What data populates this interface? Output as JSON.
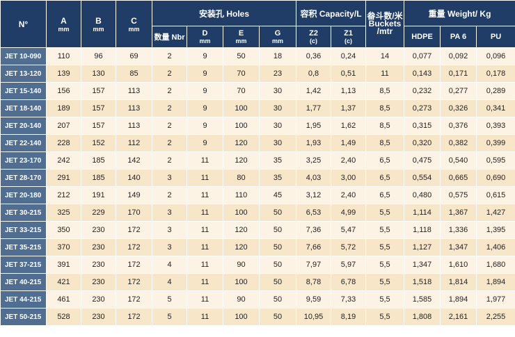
{
  "headers": {
    "no": "N°",
    "a": "A",
    "b": "B",
    "c": "C",
    "mm": "mm",
    "holes": "安装孔 Holes",
    "capacity": "容积 Capacity/L",
    "buckets": "畚斗数/米 Buckets /mtr",
    "weight": "重量 Weight/ Kg",
    "nbr": "数量 Nbr",
    "d": "D",
    "e": "E",
    "g": "G",
    "z2": "Z2",
    "z1": "Z1",
    "c_note": "(c)",
    "hdpe": "HDPE",
    "pa6": "PA 6",
    "pu": "PU"
  },
  "rows": [
    {
      "model": "JET 10-090",
      "a": "110",
      "b": "96",
      "c": "69",
      "nbr": "2",
      "d": "9",
      "e": "50",
      "g": "18",
      "z2": "0,36",
      "z1": "0,24",
      "buckets": "14",
      "hdpe": "0,077",
      "pa6": "0,092",
      "pu": "0,096"
    },
    {
      "model": "JET 13-120",
      "a": "139",
      "b": "130",
      "c": "85",
      "nbr": "2",
      "d": "9",
      "e": "70",
      "g": "23",
      "z2": "0,8",
      "z1": "0,51",
      "buckets": "11",
      "hdpe": "0,143",
      "pa6": "0,171",
      "pu": "0,178"
    },
    {
      "model": "JET 15-140",
      "a": "156",
      "b": "157",
      "c": "113",
      "nbr": "2",
      "d": "9",
      "e": "70",
      "g": "30",
      "z2": "1,42",
      "z1": "1,13",
      "buckets": "8,5",
      "hdpe": "0,232",
      "pa6": "0,277",
      "pu": "0,289"
    },
    {
      "model": "JET 18-140",
      "a": "189",
      "b": "157",
      "c": "113",
      "nbr": "2",
      "d": "9",
      "e": "100",
      "g": "30",
      "z2": "1,77",
      "z1": "1,37",
      "buckets": "8,5",
      "hdpe": "0,273",
      "pa6": "0,326",
      "pu": "0,341"
    },
    {
      "model": "JET 20-140",
      "a": "207",
      "b": "157",
      "c": "113",
      "nbr": "2",
      "d": "9",
      "e": "100",
      "g": "30",
      "z2": "1,95",
      "z1": "1,62",
      "buckets": "8,5",
      "hdpe": "0,315",
      "pa6": "0,376",
      "pu": "0,393"
    },
    {
      "model": "JET 22-140",
      "a": "228",
      "b": "152",
      "c": "112",
      "nbr": "2",
      "d": "9",
      "e": "120",
      "g": "30",
      "z2": "1,93",
      "z1": "1,49",
      "buckets": "8,5",
      "hdpe": "0,320",
      "pa6": "0,382",
      "pu": "0,399"
    },
    {
      "model": "JET 23-170",
      "a": "242",
      "b": "185",
      "c": "142",
      "nbr": "2",
      "d": "11",
      "e": "120",
      "g": "35",
      "z2": "3,25",
      "z1": "2,40",
      "buckets": "6,5",
      "hdpe": "0,475",
      "pa6": "0,540",
      "pu": "0,595"
    },
    {
      "model": "JET 28-170",
      "a": "291",
      "b": "185",
      "c": "140",
      "nbr": "3",
      "d": "11",
      "e": "80",
      "g": "35",
      "z2": "4,03",
      "z1": "3,00",
      "buckets": "6,5",
      "hdpe": "0,554",
      "pa6": "0,665",
      "pu": "0,690"
    },
    {
      "model": "JET 20-180",
      "a": "212",
      "b": "191",
      "c": "149",
      "nbr": "2",
      "d": "11",
      "e": "110",
      "g": "45",
      "z2": "3,12",
      "z1": "2,40",
      "buckets": "6,5",
      "hdpe": "0,480",
      "pa6": "0,575",
      "pu": "0,615"
    },
    {
      "model": "JET 30-215",
      "a": "325",
      "b": "229",
      "c": "170",
      "nbr": "3",
      "d": "11",
      "e": "100",
      "g": "50",
      "z2": "6,53",
      "z1": "4,99",
      "buckets": "5,5",
      "hdpe": "1,114",
      "pa6": "1,367",
      "pu": "1,427"
    },
    {
      "model": "JET 33-215",
      "a": "350",
      "b": "230",
      "c": "172",
      "nbr": "3",
      "d": "11",
      "e": "120",
      "g": "50",
      "z2": "7,36",
      "z1": "5,47",
      "buckets": "5,5",
      "hdpe": "1,118",
      "pa6": "1,336",
      "pu": "1,395"
    },
    {
      "model": "JET 35-215",
      "a": "370",
      "b": "230",
      "c": "172",
      "nbr": "3",
      "d": "11",
      "e": "120",
      "g": "50",
      "z2": "7,66",
      "z1": "5,72",
      "buckets": "5,5",
      "hdpe": "1,127",
      "pa6": "1,347",
      "pu": "1,406"
    },
    {
      "model": "JET 37-215",
      "a": "391",
      "b": "230",
      "c": "172",
      "nbr": "4",
      "d": "11",
      "e": "90",
      "g": "50",
      "z2": "7,97",
      "z1": "5,97",
      "buckets": "5,5",
      "hdpe": "1,347",
      "pa6": "1,610",
      "pu": "1,680"
    },
    {
      "model": "JET 40-215",
      "a": "421",
      "b": "230",
      "c": "172",
      "nbr": "4",
      "d": "11",
      "e": "100",
      "g": "50",
      "z2": "8,78",
      "z1": "6,78",
      "buckets": "5,5",
      "hdpe": "1,518",
      "pa6": "1,814",
      "pu": "1,894"
    },
    {
      "model": "JET 44-215",
      "a": "461",
      "b": "230",
      "c": "172",
      "nbr": "5",
      "d": "11",
      "e": "90",
      "g": "50",
      "z2": "9,59",
      "z1": "7,33",
      "buckets": "5,5",
      "hdpe": "1,585",
      "pa6": "1,894",
      "pu": "1,977"
    },
    {
      "model": "JET 50-215",
      "a": "528",
      "b": "230",
      "c": "172",
      "nbr": "5",
      "d": "11",
      "e": "100",
      "g": "50",
      "z2": "10,95",
      "z1": "8,19",
      "buckets": "5,5",
      "hdpe": "1,808",
      "pa6": "2,161",
      "pu": "2,255"
    }
  ]
}
